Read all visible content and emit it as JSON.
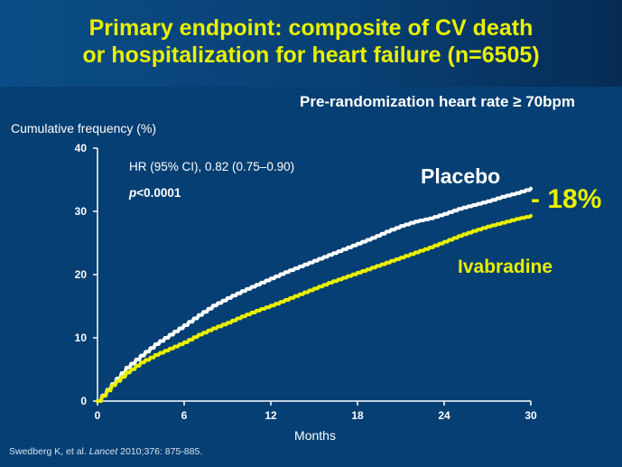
{
  "title": {
    "line1": "Primary endpoint: composite of CV death",
    "line2": "or hospitalization for heart failure (n=6505)"
  },
  "subtitle": "Pre-randomization heart rate ≥ 70bpm",
  "citation": {
    "authors": "Swedberg K, et al. ",
    "journal": "Lancet",
    "rest": " 2010;376: 875-885."
  },
  "colors": {
    "background": "#063f73",
    "title": "#e8f000",
    "placebo": "#ffffff",
    "ivabradine": "#e8f000"
  },
  "chart_data": {
    "type": "line",
    "title": "",
    "xlabel": "Months",
    "ylabel": "Cumulative frequency (%)",
    "xlim": [
      0,
      30
    ],
    "ylim": [
      0,
      40
    ],
    "xticks": [
      0,
      6,
      12,
      18,
      24,
      30
    ],
    "yticks": [
      0,
      10,
      20,
      30,
      40
    ],
    "grid": false,
    "annotations": {
      "hr_text": "HR (95% CI), 0.82 (0.75–0.90)",
      "p_italic": "p",
      "p_rest": "<0.0001",
      "reduction": "- 18%"
    },
    "series": [
      {
        "name": "Placebo",
        "color": "#ffffff",
        "x": [
          0,
          1,
          2,
          3,
          4,
          5,
          6,
          7,
          8,
          9,
          10,
          11,
          12,
          13,
          14,
          15,
          16,
          17,
          18,
          19,
          20,
          21,
          22,
          23,
          24,
          25,
          26,
          27,
          28,
          29,
          30
        ],
        "y": [
          0,
          2.7,
          5.3,
          7.2,
          9.0,
          10.5,
          12.0,
          13.6,
          15.1,
          16.3,
          17.4,
          18.4,
          19.4,
          20.4,
          21.3,
          22.2,
          23.1,
          24.0,
          24.9,
          25.8,
          26.8,
          27.7,
          28.4,
          28.9,
          29.6,
          30.4,
          31.0,
          31.6,
          32.3,
          32.9,
          33.6
        ]
      },
      {
        "name": "Ivabradine",
        "color": "#e8f000",
        "x": [
          0,
          1,
          2,
          3,
          4,
          5,
          6,
          7,
          8,
          9,
          10,
          11,
          12,
          13,
          14,
          15,
          16,
          17,
          18,
          19,
          20,
          21,
          22,
          23,
          24,
          25,
          26,
          27,
          28,
          29,
          30
        ],
        "y": [
          0,
          2.5,
          4.5,
          6.1,
          7.3,
          8.3,
          9.3,
          10.5,
          11.5,
          12.4,
          13.4,
          14.3,
          15.1,
          16.0,
          16.9,
          17.8,
          18.7,
          19.5,
          20.3,
          21.1,
          21.9,
          22.7,
          23.5,
          24.3,
          25.2,
          26.1,
          26.9,
          27.6,
          28.2,
          28.8,
          29.3
        ]
      }
    ]
  }
}
